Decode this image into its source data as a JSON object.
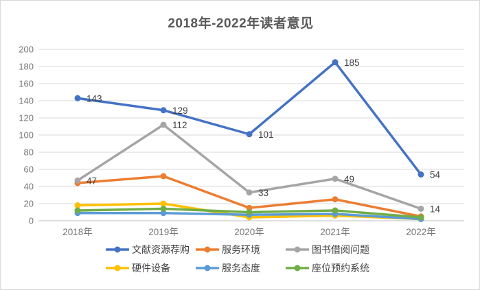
{
  "title": "2018年-2022年读者意见",
  "chart_data": {
    "type": "line",
    "title": "2018年-2022年读者意见",
    "categories": [
      "2018年",
      "2019年",
      "2020年",
      "2021年",
      "2022年"
    ],
    "series": [
      {
        "name": "文献资源荐购",
        "color": "#4472C4",
        "values": [
          143,
          129,
          101,
          185,
          54
        ],
        "data_labels": [
          143,
          129,
          101,
          185,
          54
        ]
      },
      {
        "name": "服务环境",
        "color": "#ED7D31",
        "values": [
          44,
          52,
          15,
          25,
          5
        ],
        "data_labels": null
      },
      {
        "name": "图书借阅问题",
        "color": "#A5A5A5",
        "values": [
          47,
          112,
          33,
          49,
          14
        ],
        "data_labels": [
          47,
          112,
          33,
          49,
          14
        ]
      },
      {
        "name": "硬件设备",
        "color": "#FFC000",
        "values": [
          18,
          20,
          4,
          6,
          2
        ],
        "data_labels": null
      },
      {
        "name": "服务态度",
        "color": "#5B9BD5",
        "values": [
          9,
          9,
          7,
          8,
          2
        ],
        "data_labels": null
      },
      {
        "name": "座位预约系统",
        "color": "#70AD47",
        "values": [
          12,
          14,
          10,
          12,
          4
        ],
        "data_labels": null
      }
    ],
    "xlabel": "",
    "ylabel": "",
    "ylim": [
      0,
      200
    ],
    "yticks": [
      0,
      20,
      40,
      60,
      80,
      100,
      120,
      140,
      160,
      180,
      200
    ],
    "grid": true,
    "legend_position": "bottom",
    "legend_rows": [
      [
        "文献资源荐购",
        "服务环境",
        "图书借阅问题"
      ],
      [
        "硬件设备",
        "服务态度",
        "座位预约系统"
      ]
    ]
  },
  "colors": {
    "background": "#FFFFFF",
    "border": "#D9D9D9",
    "gridline": "#D9D9D9",
    "axis_line": "#BFBFBF",
    "axis_text": "#757575",
    "title_text": "#595959",
    "data_label_text": "#404040",
    "legend_text": "#404040"
  }
}
